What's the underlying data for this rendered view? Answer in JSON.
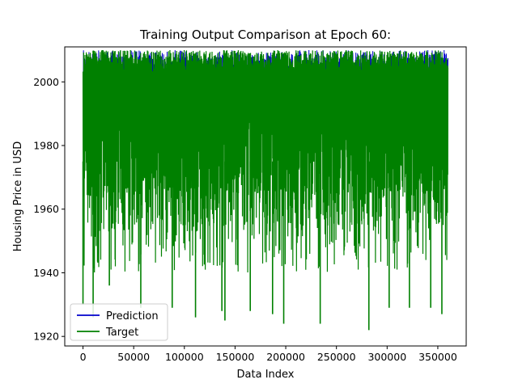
{
  "chart_data": {
    "type": "line",
    "title": "Training Output Comparison at Epoch 60:",
    "xlabel": "Data Index",
    "ylabel": "Housing Price in USD",
    "xlim": [
      -18000,
      378000
    ],
    "ylim": [
      1917,
      2011
    ],
    "x_ticks": [
      0,
      50000,
      100000,
      150000,
      200000,
      250000,
      300000,
      350000
    ],
    "x_tick_labels": [
      "0",
      "50000",
      "100000",
      "150000",
      "200000",
      "250000",
      "300000",
      "350000"
    ],
    "y_ticks": [
      1920,
      1940,
      1960,
      1980,
      2000
    ],
    "y_tick_labels": [
      "1920",
      "1940",
      "1960",
      "1980",
      "2000"
    ],
    "x_range": [
      0,
      360000
    ],
    "value_range": [
      1922,
      2010
    ],
    "grid": false,
    "legend_position": "bottom-left",
    "series": [
      {
        "name": "Prediction",
        "color": "#0000cc",
        "description_values": {
          "min": 1987,
          "max": 2010
        }
      },
      {
        "name": "Target",
        "color": "#008000",
        "description_values": {
          "min": 1922,
          "max": 2010
        }
      }
    ],
    "notable_target_minima": [
      {
        "x": 0,
        "y": 1930
      },
      {
        "x": 10000,
        "y": 1926
      },
      {
        "x": 26000,
        "y": 1936
      },
      {
        "x": 57000,
        "y": 1929
      },
      {
        "x": 88000,
        "y": 1929
      },
      {
        "x": 111000,
        "y": 1926
      },
      {
        "x": 137000,
        "y": 1928
      },
      {
        "x": 140000,
        "y": 1925
      },
      {
        "x": 165000,
        "y": 1928
      },
      {
        "x": 187000,
        "y": 1927
      },
      {
        "x": 198000,
        "y": 1924
      },
      {
        "x": 234000,
        "y": 1924
      },
      {
        "x": 282000,
        "y": 1922
      },
      {
        "x": 302000,
        "y": 1929
      },
      {
        "x": 322000,
        "y": 1929
      },
      {
        "x": 343000,
        "y": 1929
      },
      {
        "x": 354000,
        "y": 1927
      }
    ]
  }
}
